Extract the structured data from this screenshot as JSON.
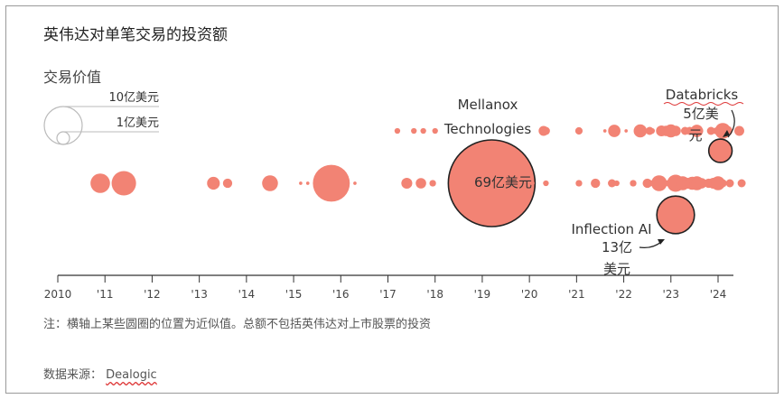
{
  "header": {
    "title": "英伟达对单笔交易的投资额",
    "subtitle": "交易价值"
  },
  "legend": {
    "large_label": "10亿美元",
    "small_label": "1亿美元",
    "large_value": 10,
    "small_value": 1
  },
  "footer": {
    "note": "注：横轴上某些圆圈的位置为近似值。总额不包括英伟达对上市股票的投资",
    "source_prefix": "数据来源：",
    "source_name": "Dealogic"
  },
  "colors": {
    "bubble": "#f28374",
    "outline": "#222222",
    "axis": "#333333"
  },
  "chart_data": {
    "type": "scatter",
    "encoding": "bubble size = deal value (亿美元, approximate)",
    "x_axis": {
      "ticks": [
        2010,
        2011,
        2012,
        2013,
        2014,
        2015,
        2016,
        2017,
        2018,
        2019,
        2020,
        2021,
        2022,
        2023,
        2024
      ],
      "tick_labels": [
        "2010",
        "'11",
        "'12",
        "'13",
        "'14",
        "'15",
        "'16",
        "'17",
        "'18",
        "'19",
        "'20",
        "'21",
        "'22",
        "'23",
        "'24"
      ],
      "range": [
        2010,
        2024.6
      ]
    },
    "annotations": [
      {
        "id": "mellanox",
        "lines": [
          "Mellanox",
          "Technologies"
        ],
        "value_label": "69亿美元"
      },
      {
        "id": "databricks",
        "lines": [
          "Databricks",
          "5亿美",
          "元"
        ]
      },
      {
        "id": "inflection",
        "lines": [
          "Inflection AI",
          "13亿",
          "美元"
        ]
      }
    ],
    "deals": [
      {
        "x": 2010.9,
        "value": 3.5
      },
      {
        "x": 2011.4,
        "value": 5.5
      },
      {
        "x": 2013.3,
        "value": 1.5
      },
      {
        "x": 2013.6,
        "value": 0.8
      },
      {
        "x": 2014.5,
        "value": 2.3
      },
      {
        "x": 2015.15,
        "value": 0.1
      },
      {
        "x": 2015.3,
        "value": 0.1
      },
      {
        "x": 2015.8,
        "value": 12.5,
        "outlined": false
      },
      {
        "x": 2016.3,
        "value": 0.1
      },
      {
        "x": 2017.2,
        "value": 0.3
      },
      {
        "x": 2017.4,
        "value": 1.1
      },
      {
        "x": 2017.55,
        "value": 0.3
      },
      {
        "x": 2017.7,
        "value": 1.0
      },
      {
        "x": 2017.75,
        "value": 0.3
      },
      {
        "x": 2017.95,
        "value": 0.4
      },
      {
        "x": 2018.0,
        "value": 0.3
      },
      {
        "x": 2019.2,
        "value": 69,
        "label": "mellanox"
      },
      {
        "x": 2020.3,
        "value": 0.9
      },
      {
        "x": 2020.35,
        "value": 0.3
      },
      {
        "x": 2020.35,
        "value": 0.6
      },
      {
        "x": 2020.05,
        "value": 0.3
      },
      {
        "x": 2021.05,
        "value": 0.5
      },
      {
        "x": 2021.05,
        "value": 0.4
      },
      {
        "x": 2021.05,
        "value": 0.3
      },
      {
        "x": 2021.4,
        "value": 0.8
      },
      {
        "x": 2021.6,
        "value": 0.1
      },
      {
        "x": 2021.75,
        "value": 0.6
      },
      {
        "x": 2021.8,
        "value": 1.4
      },
      {
        "x": 2021.85,
        "value": 0.3
      },
      {
        "x": 2022.05,
        "value": 0.1
      },
      {
        "x": 2022.2,
        "value": 0.4
      },
      {
        "x": 2022.35,
        "value": 1.6
      },
      {
        "x": 2022.5,
        "value": 0.8
      },
      {
        "x": 2022.55,
        "value": 0.6
      },
      {
        "x": 2022.55,
        "value": 0.4
      },
      {
        "x": 2022.6,
        "value": 0.3
      },
      {
        "x": 2022.75,
        "value": 2.3
      },
      {
        "x": 2022.8,
        "value": 1.1
      },
      {
        "x": 2022.8,
        "value": 0.4
      },
      {
        "x": 2022.9,
        "value": 1.0
      },
      {
        "x": 2022.95,
        "value": 0.4
      },
      {
        "x": 2023.0,
        "value": 1.6
      },
      {
        "x": 2023.1,
        "value": 2.7
      },
      {
        "x": 2023.1,
        "value": 1.0
      },
      {
        "x": 2023.25,
        "value": 1.8
      },
      {
        "x": 2023.3,
        "value": 0.6
      },
      {
        "x": 2023.35,
        "value": 1.1
      },
      {
        "x": 2023.4,
        "value": 0.6
      },
      {
        "x": 2023.45,
        "value": 1.6
      },
      {
        "x": 2023.5,
        "value": 0.8
      },
      {
        "x": 2023.55,
        "value": 1.8
      },
      {
        "x": 2023.55,
        "value": 1.4
      },
      {
        "x": 2023.55,
        "value": 1.1
      },
      {
        "x": 2023.6,
        "value": 0.6
      },
      {
        "x": 2023.65,
        "value": 1.0
      },
      {
        "x": 2023.1,
        "value": 13,
        "label": "inflection"
      },
      {
        "x": 2023.8,
        "value": 0.8
      },
      {
        "x": 2023.85,
        "value": 0.6
      },
      {
        "x": 2023.9,
        "value": 1.1
      },
      {
        "x": 2023.95,
        "value": 0.4
      },
      {
        "x": 2024.0,
        "value": 1.8
      },
      {
        "x": 2024.1,
        "value": 2.3
      },
      {
        "x": 2024.1,
        "value": 0.6
      },
      {
        "x": 2024.2,
        "value": 0.9
      },
      {
        "x": 2024.25,
        "value": 0.6
      },
      {
        "x": 2024.45,
        "value": 0.9
      },
      {
        "x": 2024.5,
        "value": 0.6
      },
      {
        "x": 2024.05,
        "value": 5,
        "label": "databricks"
      }
    ]
  }
}
